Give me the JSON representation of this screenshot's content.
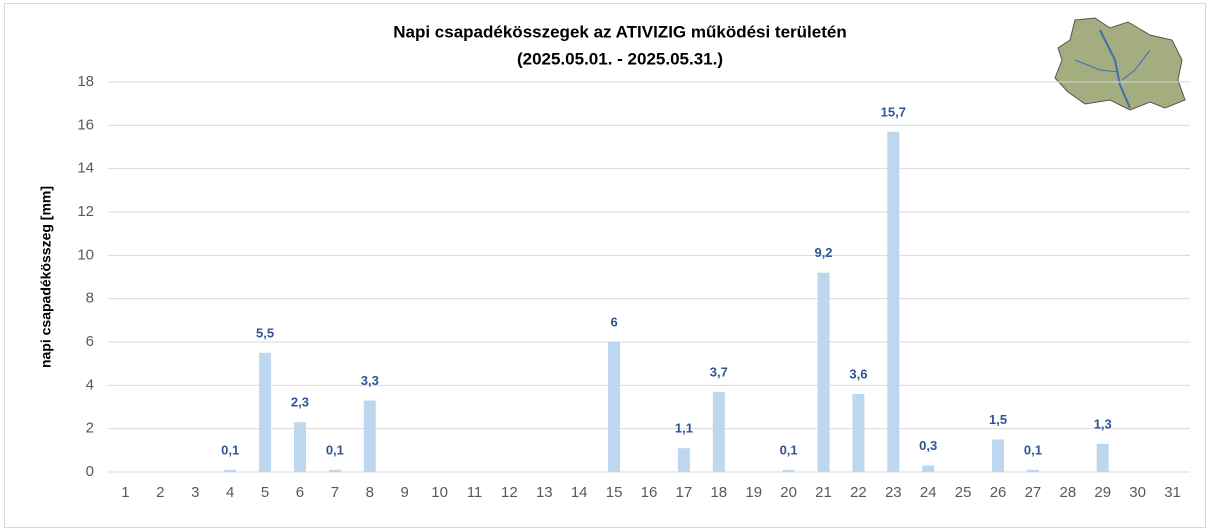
{
  "chart_data": {
    "type": "bar",
    "title": [
      "Napi csapadékösszegek az ATIVIZIG működési területén",
      "(2025.05.01. - 2025.05.31.)"
    ],
    "y_label": "napi csapadékösszeg [mm]",
    "categories": [
      "1",
      "2",
      "3",
      "4",
      "5",
      "6",
      "7",
      "8",
      "9",
      "10",
      "11",
      "12",
      "13",
      "14",
      "15",
      "16",
      "17",
      "18",
      "19",
      "20",
      "21",
      "22",
      "23",
      "24",
      "25",
      "26",
      "27",
      "28",
      "29",
      "30",
      "31"
    ],
    "values": [
      null,
      null,
      null,
      0.1,
      5.5,
      2.3,
      0.1,
      3.3,
      null,
      null,
      null,
      null,
      null,
      null,
      6,
      null,
      1.1,
      3.7,
      null,
      0.1,
      9.2,
      3.6,
      15.7,
      0.3,
      null,
      1.5,
      0.1,
      null,
      1.3,
      null,
      null
    ],
    "value_labels": [
      null,
      null,
      null,
      "0,1",
      "5,5",
      "2,3",
      "0,1",
      "3,3",
      null,
      null,
      null,
      null,
      null,
      null,
      "6",
      null,
      "1,1",
      "3,7",
      null,
      "0,1",
      "9,2",
      "3,6",
      "15,7",
      "0,3",
      null,
      "1,5",
      "0,1",
      null,
      "1,3",
      null,
      null
    ],
    "color": "#bdd7ee",
    "label_color": "#2f5597",
    "ylim": [
      0,
      18
    ],
    "yticks": [
      0,
      2,
      4,
      6,
      8,
      10,
      12,
      14,
      16,
      18
    ],
    "grid": true
  }
}
